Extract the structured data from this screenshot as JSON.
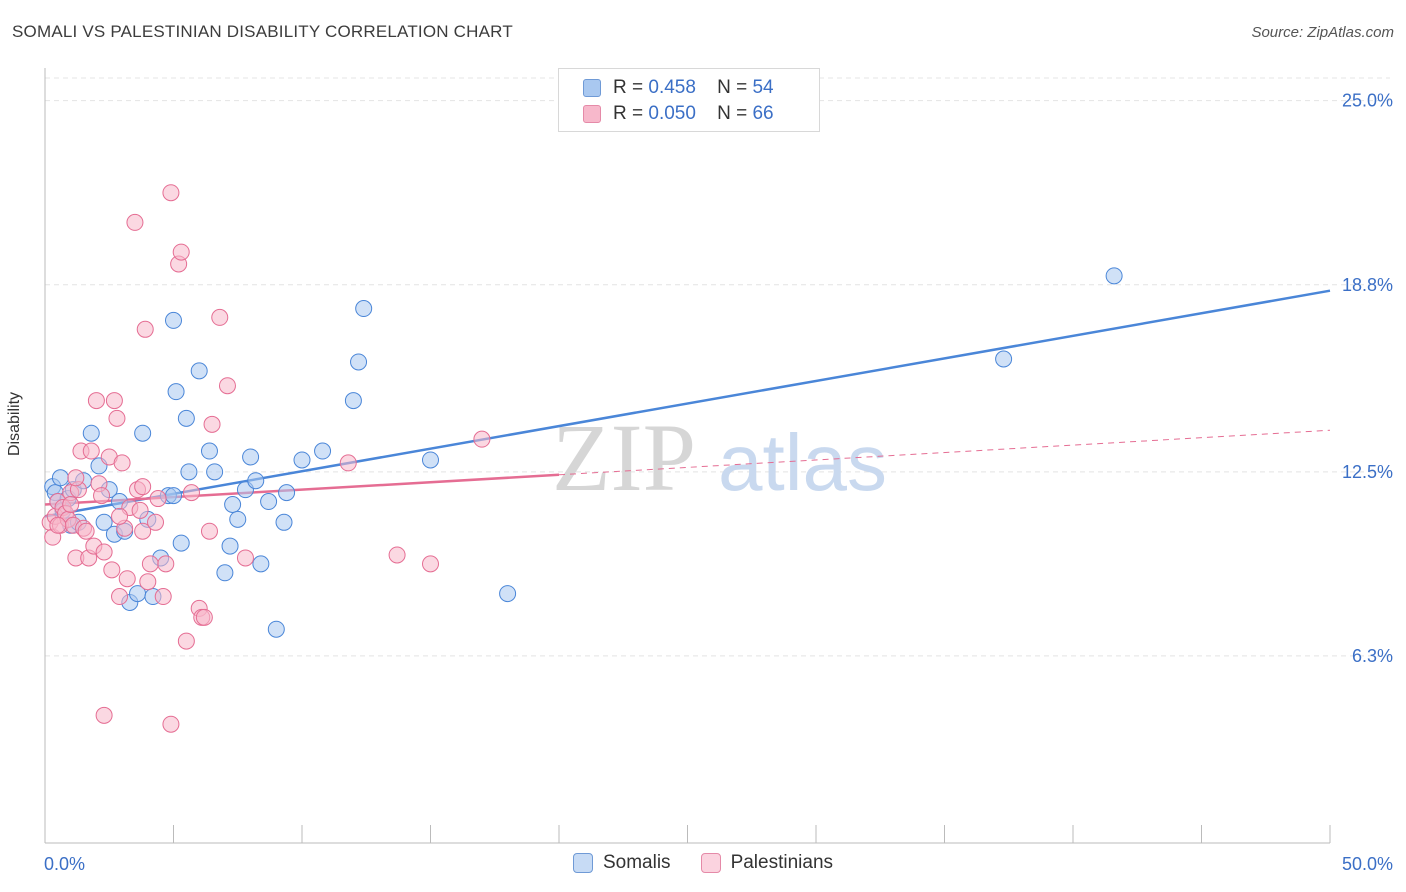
{
  "header": {
    "title": "SOMALI VS PALESTINIAN DISABILITY CORRELATION CHART",
    "source": "Source: ZipAtlas.com"
  },
  "watermark": {
    "zip": "ZIP",
    "atlas": "atlas"
  },
  "legend": {
    "rows": [
      {
        "r_label": "R =",
        "r_value": "0.458",
        "n_label": "N =",
        "n_value": "54",
        "color": "#a9c8f0"
      },
      {
        "r_label": "R =",
        "r_value": "0.050",
        "n_label": "N =",
        "n_value": "66",
        "color": "#f7b8cb"
      }
    ]
  },
  "bottom_legend": [
    {
      "label": "Somalis",
      "color": "#a9c8f0"
    },
    {
      "label": "Palestinians",
      "color": "#f7b8cb"
    }
  ],
  "chart_data": {
    "type": "scatter",
    "ylabel": "Disability",
    "x_tick_labels": [
      "0.0%",
      "50.0%"
    ],
    "y_tick_labels": [
      "25.0%",
      "18.8%",
      "12.5%",
      "6.3%"
    ],
    "y_ticks": [
      25.0,
      18.8,
      12.5,
      6.3
    ],
    "xlim": [
      0,
      50
    ],
    "ylim": [
      0,
      26.1
    ],
    "grid": true,
    "series": [
      {
        "name": "Somalis",
        "color": "#4a86d8",
        "fill": "#a9c8f0",
        "trend": {
          "x": [
            0,
            50
          ],
          "y": [
            11.0,
            18.6
          ],
          "style": "solid"
        },
        "points": [
          [
            0.3,
            12.0
          ],
          [
            0.4,
            11.8
          ],
          [
            0.5,
            11.5
          ],
          [
            0.6,
            12.3
          ],
          [
            0.7,
            11.2
          ],
          [
            0.9,
            11.6
          ],
          [
            1.0,
            10.7
          ],
          [
            1.1,
            11.9
          ],
          [
            1.3,
            10.8
          ],
          [
            1.5,
            12.2
          ],
          [
            1.8,
            13.8
          ],
          [
            2.1,
            12.7
          ],
          [
            2.3,
            10.8
          ],
          [
            2.5,
            11.9
          ],
          [
            2.7,
            10.4
          ],
          [
            2.9,
            11.5
          ],
          [
            3.1,
            10.5
          ],
          [
            3.3,
            8.1
          ],
          [
            3.6,
            8.4
          ],
          [
            3.8,
            13.8
          ],
          [
            4.0,
            10.9
          ],
          [
            4.2,
            8.3
          ],
          [
            4.5,
            9.6
          ],
          [
            4.8,
            11.7
          ],
          [
            5.0,
            17.6
          ],
          [
            5.1,
            15.2
          ],
          [
            5.3,
            10.1
          ],
          [
            5.5,
            14.3
          ],
          [
            5.6,
            12.5
          ],
          [
            6.0,
            15.9
          ],
          [
            6.4,
            13.2
          ],
          [
            6.6,
            12.5
          ],
          [
            7.0,
            9.1
          ],
          [
            7.2,
            10.0
          ],
          [
            7.3,
            11.4
          ],
          [
            7.5,
            10.9
          ],
          [
            7.8,
            11.9
          ],
          [
            8.0,
            13.0
          ],
          [
            8.2,
            12.2
          ],
          [
            8.4,
            9.4
          ],
          [
            8.7,
            11.5
          ],
          [
            9.0,
            7.2
          ],
          [
            9.3,
            10.8
          ],
          [
            9.4,
            11.8
          ],
          [
            10.0,
            12.9
          ],
          [
            10.8,
            13.2
          ],
          [
            12.0,
            14.9
          ],
          [
            12.2,
            16.2
          ],
          [
            12.4,
            18.0
          ],
          [
            15.0,
            12.9
          ],
          [
            18.0,
            8.4
          ],
          [
            37.3,
            16.3
          ],
          [
            41.6,
            19.1
          ],
          [
            5.0,
            11.7
          ]
        ]
      },
      {
        "name": "Palestinians",
        "color": "#e56d93",
        "fill": "#f7b8cb",
        "trend": {
          "x": [
            0,
            20
          ],
          "y": [
            11.4,
            12.4
          ],
          "style": "solid",
          "ext_x": [
            20,
            50
          ],
          "ext_y": [
            12.4,
            13.9
          ]
        },
        "points": [
          [
            0.2,
            10.8
          ],
          [
            0.3,
            10.3
          ],
          [
            0.4,
            11.0
          ],
          [
            0.5,
            11.5
          ],
          [
            0.6,
            10.7
          ],
          [
            0.7,
            11.3
          ],
          [
            0.8,
            11.1
          ],
          [
            0.9,
            10.9
          ],
          [
            1.0,
            11.8
          ],
          [
            1.1,
            10.7
          ],
          [
            1.2,
            9.6
          ],
          [
            1.3,
            11.9
          ],
          [
            1.4,
            13.2
          ],
          [
            1.5,
            10.6
          ],
          [
            1.6,
            10.5
          ],
          [
            1.7,
            9.6
          ],
          [
            1.8,
            13.2
          ],
          [
            1.9,
            10.0
          ],
          [
            2.0,
            14.9
          ],
          [
            2.1,
            12.1
          ],
          [
            2.2,
            11.7
          ],
          [
            2.3,
            9.8
          ],
          [
            2.5,
            13.0
          ],
          [
            2.6,
            9.2
          ],
          [
            2.7,
            14.9
          ],
          [
            2.8,
            14.3
          ],
          [
            2.9,
            8.3
          ],
          [
            3.0,
            12.8
          ],
          [
            3.1,
            10.6
          ],
          [
            3.2,
            8.9
          ],
          [
            3.3,
            11.3
          ],
          [
            3.5,
            20.9
          ],
          [
            3.6,
            11.9
          ],
          [
            3.7,
            11.2
          ],
          [
            3.8,
            10.5
          ],
          [
            3.9,
            17.3
          ],
          [
            4.0,
            8.8
          ],
          [
            4.1,
            9.4
          ],
          [
            4.3,
            10.8
          ],
          [
            4.4,
            11.6
          ],
          [
            4.6,
            8.3
          ],
          [
            4.7,
            9.4
          ],
          [
            4.9,
            21.9
          ],
          [
            5.2,
            19.5
          ],
          [
            5.3,
            19.9
          ],
          [
            5.5,
            6.8
          ],
          [
            5.7,
            11.8
          ],
          [
            6.0,
            7.9
          ],
          [
            6.1,
            7.6
          ],
          [
            6.2,
            7.6
          ],
          [
            6.4,
            10.5
          ],
          [
            6.5,
            14.1
          ],
          [
            6.8,
            17.7
          ],
          [
            7.1,
            15.4
          ],
          [
            7.8,
            9.6
          ],
          [
            11.8,
            12.8
          ],
          [
            13.7,
            9.7
          ],
          [
            15.0,
            9.4
          ],
          [
            17.0,
            13.6
          ],
          [
            2.3,
            4.3
          ],
          [
            4.9,
            4.0
          ],
          [
            0.5,
            10.7
          ],
          [
            1.2,
            12.3
          ],
          [
            2.9,
            11.0
          ],
          [
            3.8,
            12.0
          ],
          [
            1.0,
            11.4
          ]
        ]
      }
    ]
  }
}
